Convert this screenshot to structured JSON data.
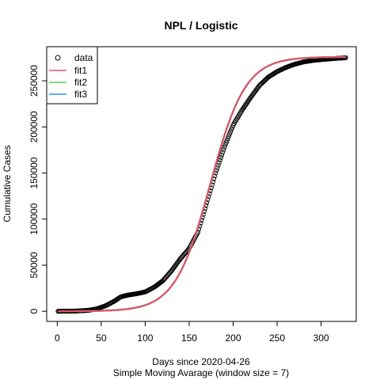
{
  "chart_data": {
    "type": "scatter",
    "title": "NPL / Logistic",
    "xlabel": "Days since 2020-04-26",
    "subtitle": "Simple Moving Avarage (window size = 7)",
    "ylabel": "Cumulative Cases",
    "xlim": [
      -12,
      340
    ],
    "ylim": [
      -11000,
      287000
    ],
    "xticks": [
      0,
      50,
      100,
      150,
      200,
      250,
      300
    ],
    "yticks": [
      0,
      50000,
      100000,
      150000,
      200000,
      250000
    ],
    "xtick_labels": [
      "0",
      "50",
      "100",
      "150",
      "200",
      "250",
      "300"
    ],
    "ytick_labels": [
      "0",
      "50000",
      "100000",
      "150000",
      "200000",
      "250000"
    ],
    "legend": {
      "position": "top-left",
      "entries": [
        {
          "label": "data",
          "symbol": "circle",
          "color": "#000000"
        },
        {
          "label": "fit1",
          "symbol": "line",
          "color": "#DF536B"
        },
        {
          "label": "fit2",
          "symbol": "line",
          "color": "#61D04F"
        },
        {
          "label": "fit3",
          "symbol": "line",
          "color": "#2297E6"
        }
      ]
    },
    "data_series": {
      "name": "data",
      "color": "#000000",
      "x_start": 1,
      "x_end": 328,
      "anchors_x": [
        1,
        20,
        35,
        45,
        55,
        65,
        72,
        80,
        90,
        100,
        110,
        120,
        130,
        140,
        150,
        160,
        170,
        180,
        190,
        200,
        210,
        220,
        230,
        240,
        250,
        260,
        270,
        280,
        290,
        300,
        310,
        320,
        328
      ],
      "anchors_y": [
        0,
        200,
        1000,
        2600,
        6000,
        11000,
        15500,
        17500,
        19000,
        21000,
        26000,
        33000,
        44000,
        57000,
        68000,
        86000,
        118000,
        150000,
        178000,
        202000,
        218000,
        232000,
        245000,
        254000,
        260000,
        264500,
        268000,
        270500,
        272000,
        273000,
        273800,
        274500,
        275000
      ]
    },
    "fits": [
      {
        "name": "fit1",
        "color": "#DF536B",
        "model": "logistic",
        "K": 276000,
        "r": 0.05,
        "x0": 174,
        "x_start": 1,
        "x_end": 328
      },
      {
        "name": "fit2",
        "color": "#61D04F",
        "model": "logistic",
        "K": 276000,
        "r": 0.05,
        "x0": 174,
        "x_start": 1,
        "x_end": 328
      },
      {
        "name": "fit3",
        "color": "#2297E6",
        "model": "logistic",
        "K": 276000,
        "r": 0.05,
        "x0": 174,
        "x_start": 1,
        "x_end": 328
      }
    ]
  }
}
